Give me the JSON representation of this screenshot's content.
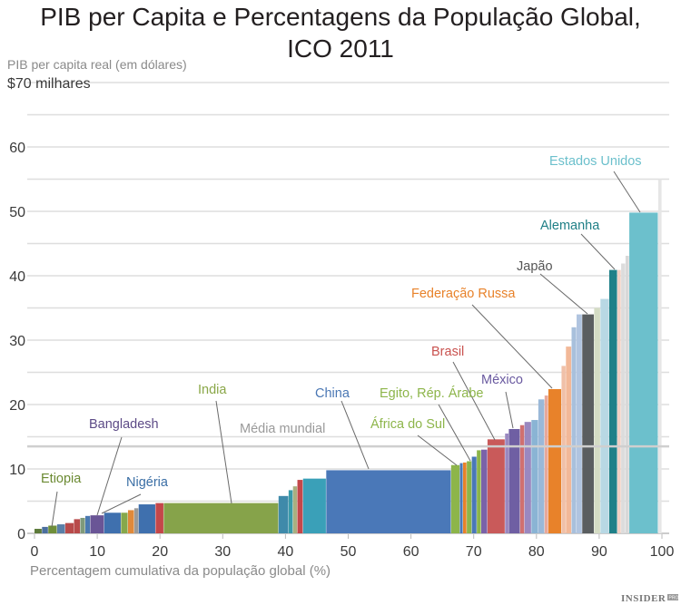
{
  "chart_data": {
    "type": "bar",
    "subtype": "variable-width (Marimekko)",
    "title": "PIB per Capita e Percentagens da População Global, ICO 2011",
    "title_lines": [
      "PIB per Capita e Percentagens da População Global,",
      "ICO 2011"
    ],
    "ylabel": "PIB per capita real (em dólares)",
    "xlabel": "Percentagem cumulativa da população global (%)",
    "xlim": [
      0,
      100
    ],
    "ylim": [
      0,
      70
    ],
    "x_ticks": [
      "0",
      "10",
      "20",
      "30",
      "40",
      "50",
      "60",
      "70",
      "80",
      "90",
      "100"
    ],
    "y_ticks": [
      "0",
      "10",
      "20",
      "30",
      "40",
      "50",
      "60",
      "$70 milhares"
    ],
    "grid": true,
    "world_average": {
      "label": "Média mundial",
      "value": 13.5,
      "color": "#cfcfcf"
    },
    "bars": [
      {
        "x0": 0,
        "x1": 1.2,
        "value": 0.7,
        "color": "#5d7a3a"
      },
      {
        "x0": 1.2,
        "x1": 2.2,
        "value": 1.0,
        "color": "#4b6f9e"
      },
      {
        "x0": 2.2,
        "x1": 3.6,
        "value": 1.2,
        "color": "#6f8f3a"
      },
      {
        "x0": 3.6,
        "x1": 4.9,
        "value": 1.4,
        "color": "#5a7fa8"
      },
      {
        "x0": 4.9,
        "x1": 6.3,
        "value": 1.6,
        "color": "#b84a4a"
      },
      {
        "x0": 6.3,
        "x1": 7.3,
        "value": 2.2,
        "color": "#b84a4a"
      },
      {
        "x0": 7.3,
        "x1": 8.1,
        "value": 2.4,
        "color": "#7f9a7a"
      },
      {
        "x0": 8.1,
        "x1": 8.9,
        "value": 2.7,
        "color": "#4a79b0"
      },
      {
        "x0": 8.9,
        "x1": 11.1,
        "value": 2.8,
        "color": "#6a5596",
        "label": "Bangladesh"
      },
      {
        "x0": 11.1,
        "x1": 13.8,
        "value": 3.2,
        "color": "#3f70ae",
        "label": "Nigéria"
      },
      {
        "x0": 13.8,
        "x1": 14.9,
        "value": 3.2,
        "color": "#86a84b"
      },
      {
        "x0": 14.9,
        "x1": 15.9,
        "value": 3.6,
        "color": "#e0893a"
      },
      {
        "x0": 15.9,
        "x1": 16.6,
        "value": 3.9,
        "color": "#9a9a9a"
      },
      {
        "x0": 16.6,
        "x1": 19.3,
        "value": 4.5,
        "color": "#3f70ae"
      },
      {
        "x0": 19.3,
        "x1": 20.6,
        "value": 4.7,
        "color": "#c4474a"
      },
      {
        "x0": 20.6,
        "x1": 38.9,
        "value": 4.7,
        "color": "#86a34a",
        "label": "India"
      },
      {
        "x0": 38.9,
        "x1": 40.5,
        "value": 5.8,
        "color": "#3f8aaa"
      },
      {
        "x0": 40.5,
        "x1": 41.2,
        "value": 6.7,
        "color": "#3a9aa8"
      },
      {
        "x0": 41.2,
        "x1": 41.9,
        "value": 7.3,
        "color": "#a9b080"
      },
      {
        "x0": 41.9,
        "x1": 42.8,
        "value": 8.3,
        "color": "#c4474a"
      },
      {
        "x0": 42.8,
        "x1": 46.5,
        "value": 8.5,
        "color": "#3aa0b8"
      },
      {
        "x0": 46.5,
        "x1": 66.4,
        "value": 9.8,
        "color": "#4a78b8",
        "label": "China"
      },
      {
        "x0": 66.4,
        "x1": 67.8,
        "value": 10.6,
        "color": "#8db54a",
        "label": "África do Sul"
      },
      {
        "x0": 67.8,
        "x1": 68.3,
        "value": 10.9,
        "color": "#4a78b8"
      },
      {
        "x0": 68.3,
        "x1": 68.9,
        "value": 11.0,
        "color": "#e8822a"
      },
      {
        "x0": 68.9,
        "x1": 69.7,
        "value": 11.2,
        "color": "#8db54a",
        "label": "Egito, Rép. Árabe"
      },
      {
        "x0": 69.7,
        "x1": 70.5,
        "value": 11.9,
        "color": "#4a78b8"
      },
      {
        "x0": 70.5,
        "x1": 71.2,
        "value": 12.9,
        "color": "#8db54a"
      },
      {
        "x0": 71.2,
        "x1": 72.2,
        "value": 13.0,
        "color": "#7a62a8"
      },
      {
        "x0": 72.2,
        "x1": 75.0,
        "value": 14.6,
        "color": "#c95a5a",
        "label": "Brasil"
      },
      {
        "x0": 75.0,
        "x1": 75.6,
        "value": 15.5,
        "color": "#9a88c0"
      },
      {
        "x0": 75.6,
        "x1": 77.4,
        "value": 16.2,
        "color": "#6f5fa3",
        "label": "México"
      },
      {
        "x0": 77.4,
        "x1": 78.1,
        "value": 16.8,
        "color": "#d07070"
      },
      {
        "x0": 78.1,
        "x1": 79.2,
        "value": 17.3,
        "color": "#9a88c0"
      },
      {
        "x0": 79.2,
        "x1": 80.3,
        "value": 17.6,
        "color": "#8ab4d4"
      },
      {
        "x0": 80.3,
        "x1": 81.3,
        "value": 20.8,
        "color": "#9ab8d8"
      },
      {
        "x0": 81.3,
        "x1": 81.9,
        "value": 21.4,
        "color": "#e8a89a"
      },
      {
        "x0": 81.9,
        "x1": 84.0,
        "value": 22.4,
        "color": "#e8822a",
        "label": "Federação Russa"
      },
      {
        "x0": 84.0,
        "x1": 84.7,
        "value": 26.0,
        "color": "#f0c0a8"
      },
      {
        "x0": 84.7,
        "x1": 85.6,
        "value": 29.0,
        "color": "#f2b898"
      },
      {
        "x0": 85.6,
        "x1": 86.4,
        "value": 32.0,
        "color": "#a8c0dc"
      },
      {
        "x0": 86.4,
        "x1": 87.3,
        "value": 34.0,
        "color": "#b0c4e0"
      },
      {
        "x0": 87.3,
        "x1": 89.2,
        "value": 34.0,
        "color": "#5a5e60",
        "label": "Japão"
      },
      {
        "x0": 89.2,
        "x1": 90.2,
        "value": 35.0,
        "color": "#d4dcc4"
      },
      {
        "x0": 90.2,
        "x1": 91.6,
        "value": 36.4,
        "color": "#b8d8e4"
      },
      {
        "x0": 91.6,
        "x1": 92.9,
        "value": 40.9,
        "color": "#1f8088",
        "label": "Alemanha"
      },
      {
        "x0": 92.9,
        "x1": 93.5,
        "value": 40.9,
        "color": "#f0d0c4"
      },
      {
        "x0": 93.5,
        "x1": 94.2,
        "value": 41.9,
        "color": "#dcdcdc"
      },
      {
        "x0": 94.2,
        "x1": 94.8,
        "value": 43.1,
        "color": "#d8d8d8"
      },
      {
        "x0": 94.8,
        "x1": 99.4,
        "value": 49.8,
        "color": "#6cc0cc",
        "label": "Estados Unidos"
      },
      {
        "x0": 99.4,
        "x1": 100,
        "value": 55,
        "color": "#e6e6e6"
      }
    ],
    "annotations": [
      {
        "text": "Etiopia",
        "color": "#6b8a32"
      },
      {
        "text": "Bangladesh",
        "color": "#5c4a86"
      },
      {
        "text": "Nigéria",
        "color": "#3a6ea5"
      },
      {
        "text": "India",
        "color": "#8aa748"
      },
      {
        "text": "Média mundial",
        "color": "#9a9a9a"
      },
      {
        "text": "China",
        "color": "#4a77b4"
      },
      {
        "text": "Egito, Rép. Árabe",
        "color": "#8db54a"
      },
      {
        "text": "África do Sul",
        "color": "#8db54a"
      },
      {
        "text": "Brasil",
        "color": "#c9524f"
      },
      {
        "text": "México",
        "color": "#6a5aa0"
      },
      {
        "text": "Federação Russa",
        "color": "#e8822a"
      },
      {
        "text": "Japão",
        "color": "#555555"
      },
      {
        "text": "Alemanha",
        "color": "#1f7f86"
      },
      {
        "text": "Estados Unidos",
        "color": "#6cc0cc"
      }
    ]
  },
  "logo": {
    "text": "INSIDER",
    "badge": "PRO"
  }
}
